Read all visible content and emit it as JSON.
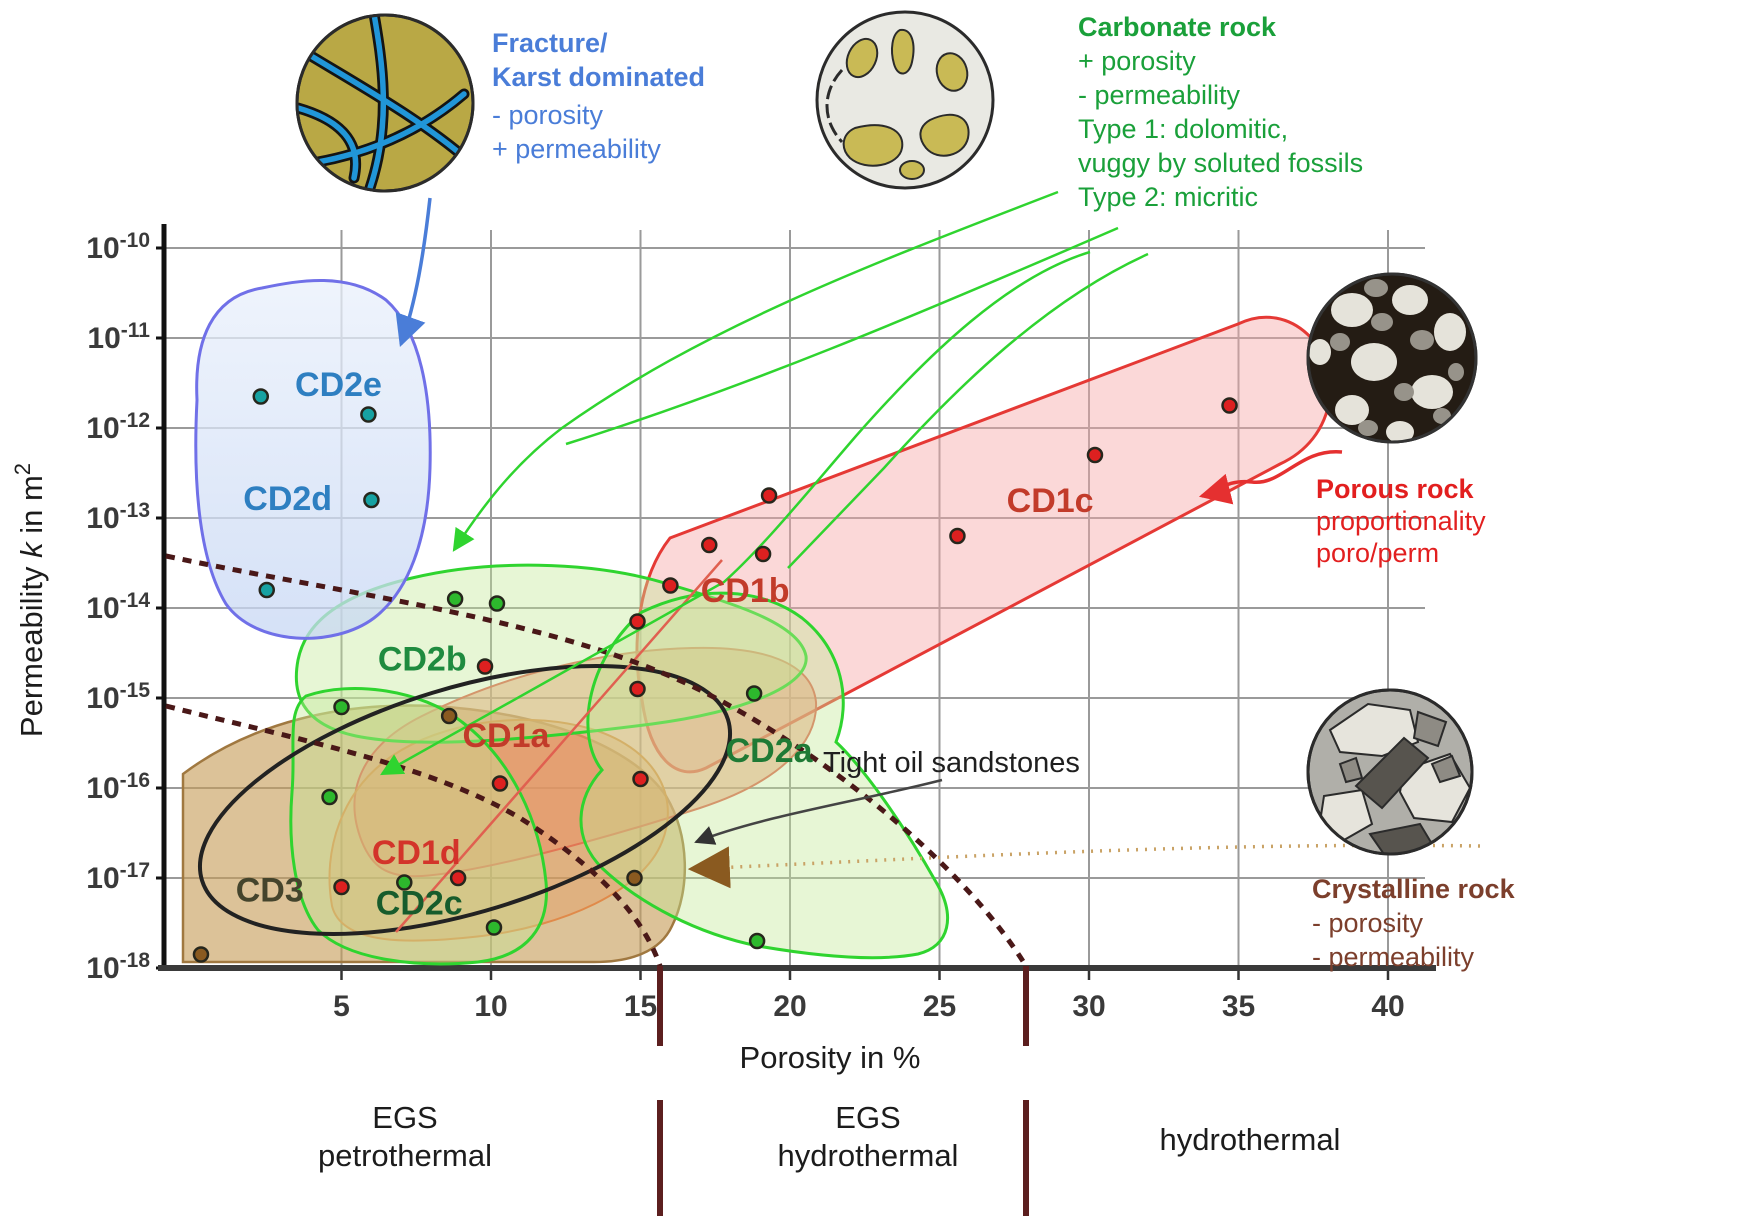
{
  "chart_data": {
    "type": "scatter",
    "title": "",
    "xlabel": "Porosity in %",
    "ylabel_pre": "Permeability ",
    "ylabel_k": "k",
    "ylabel_post": " in m",
    "ylabel_sup": "2",
    "x_ticks": [
      5,
      10,
      15,
      20,
      25,
      30,
      35,
      40
    ],
    "y_tick_base": "10",
    "y_tick_exponents": [
      -10,
      -11,
      -12,
      -13,
      -14,
      -15,
      -16,
      -17,
      -18
    ],
    "xlim": [
      0,
      41
    ],
    "ylim_exponents": [
      -18,
      -10
    ],
    "grid": true,
    "series": [
      {
        "name": "fracture-karst-samples",
        "color": "#17a2a2",
        "points": [
          [
            2.3,
            -11.65
          ],
          [
            5.9,
            -11.85
          ],
          [
            6.0,
            -12.8
          ],
          [
            2.5,
            -13.8
          ]
        ]
      },
      {
        "name": "carbonate-samples",
        "color": "#2db82d",
        "points": [
          [
            8.8,
            -13.9
          ],
          [
            10.2,
            -13.95
          ],
          [
            5.0,
            -15.1
          ],
          [
            4.6,
            -16.1
          ],
          [
            18.8,
            -14.95
          ],
          [
            7.1,
            -17.05
          ],
          [
            10.1,
            -17.55
          ],
          [
            18.9,
            -17.7
          ]
        ]
      },
      {
        "name": "porous-rock-samples",
        "color": "#dd2020",
        "points": [
          [
            19.3,
            -12.75
          ],
          [
            17.3,
            -13.3
          ],
          [
            19.1,
            -13.4
          ],
          [
            16.0,
            -13.75
          ],
          [
            25.6,
            -13.2
          ],
          [
            30.2,
            -12.3
          ],
          [
            34.7,
            -11.75
          ],
          [
            14.9,
            -14.15
          ],
          [
            14.9,
            -14.9
          ],
          [
            15.0,
            -15.9
          ],
          [
            9.8,
            -14.65
          ],
          [
            10.3,
            -15.95
          ],
          [
            8.9,
            -17.0
          ],
          [
            5.0,
            -17.1
          ]
        ]
      },
      {
        "name": "crystalline-samples",
        "color": "#8a5a20",
        "points": [
          [
            8.6,
            -15.2
          ],
          [
            14.8,
            -17.0
          ],
          [
            0.3,
            -17.85
          ]
        ]
      }
    ],
    "region_labels": [
      {
        "text": "CD2e",
        "x": 4.9,
        "exp": -11.51,
        "color": "#2e7fc1"
      },
      {
        "text": "CD2d",
        "x": 3.2,
        "exp": -12.78,
        "color": "#2e7fc1"
      },
      {
        "text": "CD2b",
        "x": 7.7,
        "exp": -14.56,
        "color": "#1f8b3f"
      },
      {
        "text": "CD2a",
        "x": 19.3,
        "exp": -15.58,
        "color": "#1f7a35"
      },
      {
        "text": "CD2c",
        "x": 7.6,
        "exp": -17.27,
        "color": "#175c2c"
      },
      {
        "text": "CD1a",
        "x": 10.5,
        "exp": -15.41,
        "color": "#c23b2a"
      },
      {
        "text": "CD1b",
        "x": 18.5,
        "exp": -13.8,
        "color": "#c23b2a"
      },
      {
        "text": "CD1c",
        "x": 28.7,
        "exp": -12.8,
        "color": "#c23b2a"
      },
      {
        "text": "CD1d",
        "x": 7.5,
        "exp": -16.71,
        "color": "#d3342a"
      },
      {
        "text": "CD3",
        "x": 2.6,
        "exp": -17.13,
        "color": "#44442c"
      }
    ],
    "annotation_label": {
      "text": "Tight oil sandstones",
      "x": 25.4,
      "exp": -15.71,
      "color": "#1f1f1f"
    },
    "legend_position": "around-plot",
    "zone_dividers_porosity": [
      15.7,
      28
    ]
  },
  "legend": {
    "fracture": {
      "color": "#4a7dd8",
      "lines": [
        "Fracture/",
        "Karst dominated",
        "-  porosity",
        "+ permeability"
      ]
    },
    "carbonate": {
      "color": "#1aa03a",
      "lines": [
        "Carbonate rock",
        "+ porosity",
        "-  permeability",
        "Type 1: dolomitic,",
        "vuggy by soluted fossils",
        "Type 2: micritic"
      ]
    },
    "porous": {
      "color": "#e21f1f",
      "lines": [
        "Porous rock",
        "proportionality",
        "poro/perm"
      ]
    },
    "crystalline": {
      "color": "#7c3f2c",
      "lines": [
        "Crystalline rock",
        "-  porosity",
        "-  permeability"
      ]
    }
  },
  "zones": {
    "petrothermal": [
      "EGS",
      "petrothermal"
    ],
    "egs_hydrothermal": [
      "EGS",
      "hydrothermal"
    ],
    "hydrothermal": "hydrothermal"
  },
  "colors": {
    "blue_region_stroke": "#7070e8",
    "green_region_stroke": "#2fd42f",
    "red_region_stroke": "#e53935",
    "salmon_region_stroke": "#e06050",
    "orange_region_stroke": "#e08a4a",
    "tan_region_stroke": "#a07840",
    "black_ellipse_stroke": "#222222",
    "dashed_curve": "#4a1818",
    "divider": "#5c1f1f",
    "tan_pointer": "#c9a265"
  }
}
